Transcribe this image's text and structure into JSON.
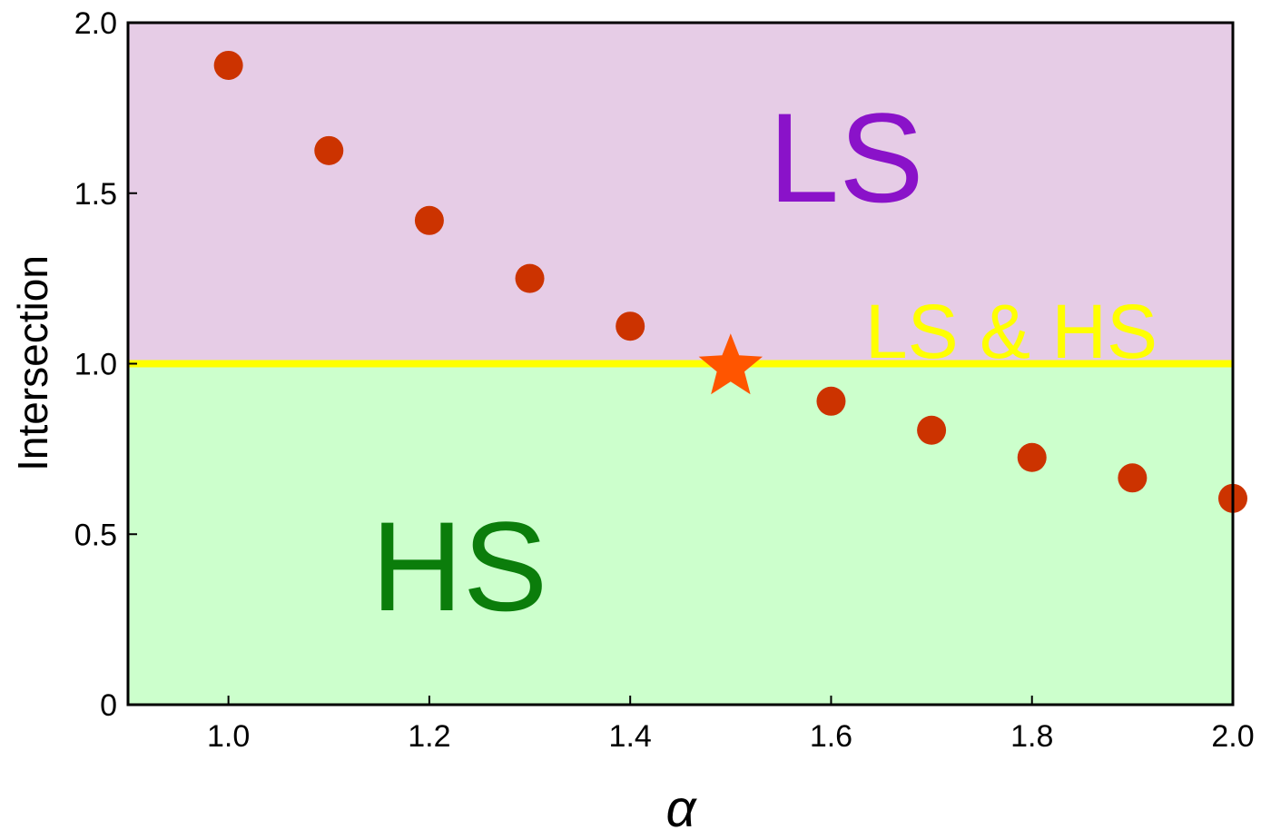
{
  "chart_data": {
    "type": "scatter",
    "xlabel": "α",
    "ylabel": "Intersection",
    "xlim": [
      0.9,
      2.0
    ],
    "ylim": [
      0,
      2.0
    ],
    "x_ticks": [
      "1.0",
      "1.2",
      "1.4",
      "1.6",
      "1.8",
      "2.0"
    ],
    "y_ticks": [
      "0",
      "0.5",
      "1.0",
      "1.5",
      "2.0"
    ],
    "grid": false,
    "regions": [
      {
        "label": "LS",
        "y_range": [
          1.0,
          2.0
        ],
        "fill": "#e6cce6",
        "label_color": "#8a12c9"
      },
      {
        "label": "HS",
        "y_range": [
          0,
          1.0
        ],
        "fill": "#ccffcc",
        "label_color": "#0b7d0b"
      }
    ],
    "boundary": {
      "label": "LS & HS",
      "y": 1.0,
      "color": "#ffff00"
    },
    "series": [
      {
        "marker": "circle",
        "color": "#cc3300",
        "x": [
          1.0,
          1.1,
          1.2,
          1.3,
          1.4,
          1.6,
          1.7,
          1.8,
          1.9,
          2.0
        ],
        "y": [
          1.875,
          1.625,
          1.42,
          1.25,
          1.11,
          0.89,
          0.805,
          0.725,
          0.665,
          0.605
        ]
      },
      {
        "marker": "star",
        "color": "#ff5500",
        "x": [
          1.5
        ],
        "y": [
          0.99
        ]
      }
    ]
  }
}
